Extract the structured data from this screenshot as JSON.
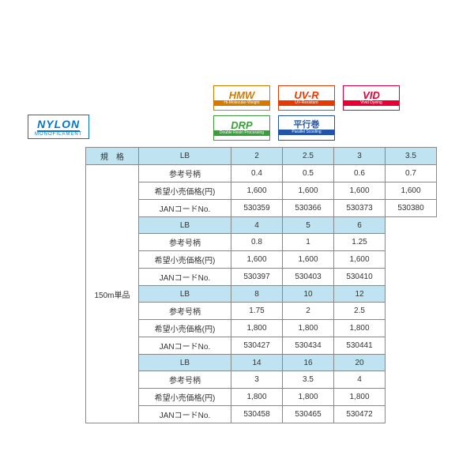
{
  "nylon": {
    "title": "NYLON",
    "subtitle": "MONOFILAMENT"
  },
  "badges": {
    "row1": [
      {
        "big": "HMW",
        "sub": "Hi-Molecular-Weight",
        "cls": "hmw"
      },
      {
        "big": "UV-R",
        "sub": "UV-Resistant",
        "cls": "uvr"
      },
      {
        "big": "VID",
        "sub": "Vivid Dyeing",
        "cls": "vid"
      }
    ],
    "row2": [
      {
        "big": "DRP",
        "sub": "Double Resin Processing",
        "cls": "drp"
      },
      {
        "big": "平行巻",
        "sub": "Parallel Scooling",
        "cls": "ps"
      }
    ]
  },
  "labels": {
    "spec": "規　格",
    "lb": "LB",
    "ref": "参考号柄",
    "price": "希望小売価格(円)",
    "jan": "JANコードNo.",
    "side": "150m単品"
  },
  "blocks": [
    {
      "lb": [
        "2",
        "2.5",
        "3",
        "3.5"
      ],
      "ref": [
        "0.4",
        "0.5",
        "0.6",
        "0.7"
      ],
      "price": [
        "1,600",
        "1,600",
        "1,600",
        "1,600"
      ],
      "jan": [
        "530359",
        "530366",
        "530373",
        "530380"
      ]
    },
    {
      "lb": [
        "4",
        "5",
        "6"
      ],
      "ref": [
        "0.8",
        "1",
        "1.25"
      ],
      "price": [
        "1,600",
        "1,600",
        "1,600"
      ],
      "jan": [
        "530397",
        "530403",
        "530410"
      ]
    },
    {
      "lb": [
        "8",
        "10",
        "12"
      ],
      "ref": [
        "1.75",
        "2",
        "2.5"
      ],
      "price": [
        "1,800",
        "1,800",
        "1,800"
      ],
      "jan": [
        "530427",
        "530434",
        "530441"
      ]
    },
    {
      "lb": [
        "14",
        "16",
        "20"
      ],
      "ref": [
        "3",
        "3.5",
        "4"
      ],
      "price": [
        "1,800",
        "1,800",
        "1,800"
      ],
      "jan": [
        "530458",
        "530465",
        "530472"
      ]
    }
  ],
  "colors": {
    "header_bg": "#bfe3f0",
    "border": "#888888"
  }
}
